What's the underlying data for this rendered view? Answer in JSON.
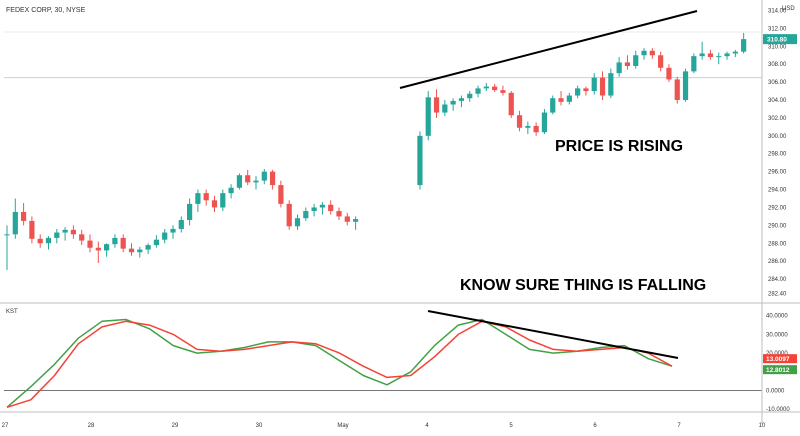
{
  "header": {
    "symbol": "FEDEX CORP, 30, NYSE",
    "currency": "USD"
  },
  "annotations": {
    "price": "PRICE IS RISING",
    "indicator": "KNOW SURE THING IS FALLING"
  },
  "colors": {
    "up": "#26a69a",
    "down": "#ef5350",
    "kst": "#43a047",
    "signal": "#f44336",
    "trendline": "#000000",
    "grid": "#e5e5e5",
    "axis_text": "#333333"
  },
  "chart_data": [
    {
      "type": "candlestick",
      "title": "FEDEX CORP, 30, NYSE",
      "x_ticks": [
        "27",
        "28",
        "29",
        "30",
        "May",
        "4",
        "5",
        "6",
        "7",
        "10"
      ],
      "ylim": [
        282,
        314.5
      ],
      "y_ticks": [
        "314.00",
        "312.00",
        "310.00",
        "308.00",
        "306.00",
        "304.00",
        "302.00",
        "300.00",
        "298.00",
        "296.00",
        "294.00",
        "292.00",
        "290.00",
        "288.00",
        "286.00",
        "284.00",
        "282.40"
      ],
      "last_price": "310.80",
      "reference_line": 306.5,
      "grid": false,
      "candles": [
        [
          289.0,
          290.0,
          285.0,
          289.0
        ],
        [
          289.0,
          293.0,
          288.5,
          291.5
        ],
        [
          291.5,
          292.5,
          290.0,
          290.5
        ],
        [
          290.5,
          291.0,
          288.0,
          288.5
        ],
        [
          288.5,
          289.0,
          287.5,
          288.0
        ],
        [
          288.0,
          288.8,
          287.3,
          288.6
        ],
        [
          288.6,
          289.6,
          288.0,
          289.2
        ],
        [
          289.2,
          289.8,
          288.3,
          289.5
        ],
        [
          289.5,
          290.0,
          288.5,
          289.0
        ],
        [
          289.0,
          289.5,
          287.8,
          288.3
        ],
        [
          288.3,
          289.0,
          287.0,
          287.5
        ],
        [
          287.5,
          288.2,
          285.8,
          287.2
        ],
        [
          287.2,
          288.0,
          286.5,
          287.9
        ],
        [
          287.9,
          289.0,
          287.5,
          288.6
        ],
        [
          288.6,
          289.0,
          287.0,
          287.4
        ],
        [
          287.4,
          288.0,
          286.6,
          287.0
        ],
        [
          287.0,
          287.6,
          286.4,
          287.3
        ],
        [
          287.3,
          288.0,
          286.8,
          287.8
        ],
        [
          287.8,
          288.9,
          287.5,
          288.4
        ],
        [
          288.4,
          289.6,
          288.0,
          289.2
        ],
        [
          289.2,
          290.0,
          288.5,
          289.6
        ],
        [
          289.6,
          291.0,
          289.2,
          290.6
        ],
        [
          290.6,
          293.0,
          290.0,
          292.4
        ],
        [
          292.4,
          294.0,
          291.5,
          293.6
        ],
        [
          293.6,
          294.0,
          292.2,
          292.8
        ],
        [
          292.8,
          293.3,
          291.5,
          292.0
        ],
        [
          292.0,
          294.0,
          291.6,
          293.6
        ],
        [
          293.6,
          294.6,
          293.0,
          294.2
        ],
        [
          294.2,
          295.8,
          294.0,
          295.6
        ],
        [
          295.6,
          296.2,
          294.5,
          294.8
        ],
        [
          294.8,
          295.5,
          294.0,
          295.0
        ],
        [
          295.0,
          296.3,
          294.6,
          296.0
        ],
        [
          296.0,
          296.2,
          294.0,
          294.5
        ],
        [
          294.5,
          295.0,
          292.0,
          292.4
        ],
        [
          292.4,
          292.8,
          289.5,
          289.9
        ],
        [
          289.9,
          291.2,
          289.5,
          290.8
        ],
        [
          290.8,
          292.0,
          290.5,
          291.6
        ],
        [
          291.6,
          292.4,
          291.0,
          292.0
        ],
        [
          292.0,
          292.6,
          291.2,
          292.3
        ],
        [
          292.3,
          292.8,
          291.2,
          291.6
        ],
        [
          291.6,
          292.0,
          290.6,
          291.0
        ],
        [
          291.0,
          291.4,
          290.0,
          290.4
        ],
        [
          290.4,
          291.0,
          289.5,
          290.7
        ],
        [
          294.5,
          300.5,
          294.0,
          300.0
        ],
        [
          300.0,
          305.0,
          299.5,
          304.3
        ],
        [
          304.3,
          305.2,
          302.0,
          302.6
        ],
        [
          302.6,
          304.0,
          302.2,
          303.5
        ],
        [
          303.5,
          304.2,
          302.8,
          303.9
        ],
        [
          303.9,
          304.5,
          303.2,
          304.2
        ],
        [
          304.2,
          305.0,
          303.8,
          304.7
        ],
        [
          304.7,
          305.6,
          304.3,
          305.3
        ],
        [
          305.3,
          305.9,
          305.0,
          305.5
        ],
        [
          305.5,
          305.8,
          304.9,
          305.1
        ],
        [
          305.1,
          305.6,
          304.5,
          304.8
        ],
        [
          304.8,
          305.0,
          302.0,
          302.3
        ],
        [
          302.3,
          302.8,
          300.5,
          300.9
        ],
        [
          300.9,
          301.6,
          300.2,
          301.1
        ],
        [
          301.1,
          301.5,
          300.0,
          300.4
        ],
        [
          300.4,
          303.0,
          300.2,
          302.6
        ],
        [
          302.6,
          304.5,
          302.4,
          304.2
        ],
        [
          304.2,
          305.0,
          303.4,
          303.8
        ],
        [
          303.8,
          304.8,
          303.5,
          304.5
        ],
        [
          304.5,
          305.6,
          304.2,
          305.3
        ],
        [
          305.3,
          305.5,
          304.5,
          305.0
        ],
        [
          305.0,
          307.0,
          304.6,
          306.5
        ],
        [
          306.5,
          307.2,
          304.0,
          304.5
        ],
        [
          304.5,
          307.5,
          304.2,
          307.0
        ],
        [
          307.0,
          308.8,
          306.6,
          308.2
        ],
        [
          308.2,
          309.0,
          307.4,
          307.8
        ],
        [
          307.8,
          309.5,
          307.5,
          309.0
        ],
        [
          309.0,
          309.8,
          308.5,
          309.5
        ],
        [
          309.5,
          309.8,
          308.6,
          309.0
        ],
        [
          309.0,
          309.4,
          307.2,
          307.6
        ],
        [
          307.6,
          308.0,
          306.0,
          306.3
        ],
        [
          306.3,
          306.6,
          303.6,
          304.0
        ],
        [
          304.0,
          307.5,
          303.8,
          307.2
        ],
        [
          307.2,
          309.2,
          307.0,
          308.9
        ],
        [
          308.9,
          310.5,
          308.5,
          309.2
        ],
        [
          309.2,
          309.6,
          308.5,
          308.8
        ],
        [
          308.8,
          309.3,
          308.0,
          308.9
        ],
        [
          308.9,
          309.4,
          308.5,
          309.2
        ],
        [
          309.2,
          309.6,
          308.8,
          309.4
        ],
        [
          309.4,
          311.5,
          309.2,
          310.8
        ]
      ]
    },
    {
      "type": "line",
      "title": "KST",
      "x_ticks": [
        "27",
        "28",
        "29",
        "30",
        "May",
        "4",
        "5",
        "6",
        "7",
        "10"
      ],
      "ylim": [
        -11,
        42
      ],
      "y_ticks": [
        "40.0000",
        "30.0000",
        "20.0000",
        "10.0000",
        "0.0000",
        "-10.0000"
      ],
      "x": [
        0,
        3,
        6,
        9,
        12,
        15,
        18,
        21,
        24,
        27,
        30,
        33,
        36,
        39,
        42,
        45,
        48,
        51,
        54,
        57,
        60,
        63,
        66,
        69,
        72,
        75,
        78,
        81,
        84
      ],
      "series": [
        {
          "name": "KST",
          "label_value": "12.8012",
          "values": [
            -9,
            2,
            14,
            28,
            37,
            38,
            33,
            24,
            20,
            21,
            23,
            26,
            26,
            24,
            16,
            8,
            3,
            10,
            24,
            35,
            38,
            30,
            22,
            20,
            21,
            23,
            24,
            17,
            13
          ]
        },
        {
          "name": "Signal",
          "label_value": "13.0097",
          "values": [
            -9,
            -5,
            8,
            25,
            34,
            37,
            35,
            30,
            22,
            21,
            22,
            24,
            26,
            25,
            20,
            13,
            7,
            8,
            18,
            30,
            37,
            34,
            27,
            22,
            21,
            22,
            23,
            20,
            13
          ]
        }
      ]
    }
  ]
}
